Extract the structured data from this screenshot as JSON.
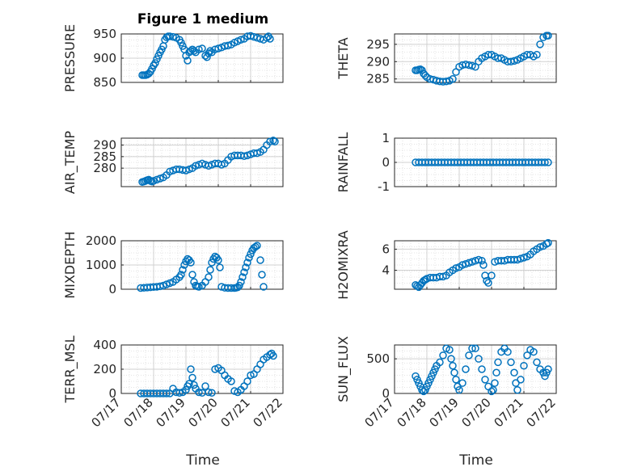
{
  "figure": {
    "title": "Figure 1 medium",
    "marker_color": "#0072BD",
    "x_tick_labels": [
      "07/17",
      "07/18",
      "07/19",
      "07/20",
      "07/21",
      "07/22"
    ]
  },
  "chart_data": [
    {
      "type": "scatter",
      "ylabel": "PRESSURE",
      "xlabel": "",
      "title": "Figure 1 medium",
      "xlim": [
        0,
        5
      ],
      "ylim": [
        850,
        950
      ],
      "yticks": [
        850,
        900,
        950
      ],
      "grid": true,
      "x": [
        0.65,
        0.7,
        0.75,
        0.8,
        0.85,
        0.9,
        0.95,
        1.0,
        1.05,
        1.1,
        1.15,
        1.2,
        1.25,
        1.3,
        1.35,
        1.4,
        1.45,
        1.5,
        1.6,
        1.7,
        1.8,
        1.85,
        1.9,
        1.95,
        2.0,
        2.05,
        2.1,
        2.15,
        2.2,
        2.25,
        2.3,
        2.4,
        2.5,
        2.6,
        2.65,
        2.7,
        2.75,
        2.8,
        2.9,
        3.0,
        3.1,
        3.2,
        3.3,
        3.4,
        3.5,
        3.6,
        3.7,
        3.8,
        3.9,
        4.0,
        4.1,
        4.2,
        4.3,
        4.4,
        4.5,
        4.55,
        4.6
      ],
      "y": [
        865,
        865,
        865,
        866,
        868,
        872,
        878,
        885,
        890,
        898,
        905,
        912,
        918,
        925,
        938,
        943,
        945,
        945,
        944,
        942,
        938,
        932,
        925,
        918,
        905,
        895,
        912,
        915,
        918,
        915,
        912,
        918,
        920,
        905,
        902,
        910,
        915,
        912,
        918,
        920,
        922,
        925,
        926,
        928,
        932,
        935,
        938,
        940,
        945,
        946,
        944,
        942,
        940,
        938,
        942,
        945,
        940
      ]
    },
    {
      "type": "scatter",
      "ylabel": "THETA",
      "xlabel": "",
      "xlim": [
        0,
        5
      ],
      "ylim": [
        284,
        298
      ],
      "yticks": [
        285,
        290,
        295
      ],
      "grid": true,
      "x": [
        0.65,
        0.7,
        0.75,
        0.8,
        0.85,
        0.9,
        0.95,
        1.0,
        1.1,
        1.2,
        1.3,
        1.4,
        1.5,
        1.6,
        1.7,
        1.8,
        1.9,
        2.0,
        2.1,
        2.2,
        2.3,
        2.4,
        2.5,
        2.6,
        2.7,
        2.8,
        2.9,
        3.0,
        3.1,
        3.2,
        3.3,
        3.4,
        3.5,
        3.6,
        3.7,
        3.8,
        3.9,
        4.0,
        4.1,
        4.2,
        4.3,
        4.4,
        4.5,
        4.6,
        4.7,
        4.75
      ],
      "y": [
        287.5,
        287.5,
        287.7,
        287.8,
        287.5,
        286.5,
        286,
        285.5,
        285,
        284.8,
        284.5,
        284.3,
        284.2,
        284.3,
        284.5,
        285,
        287,
        288.5,
        289,
        289.2,
        289,
        288.8,
        288.5,
        290,
        291,
        291.5,
        292,
        292,
        291.5,
        291,
        291,
        290.5,
        290,
        290,
        290.2,
        290.5,
        291,
        291.5,
        292,
        292,
        291.5,
        292,
        295,
        297,
        297.5,
        297.5
      ]
    },
    {
      "type": "scatter",
      "ylabel": "AIR_TEMP",
      "xlabel": "",
      "xlim": [
        0,
        5
      ],
      "ylim": [
        272,
        293
      ],
      "yticks": [
        280,
        285,
        290
      ],
      "grid": true,
      "x": [
        0.65,
        0.7,
        0.75,
        0.8,
        0.85,
        0.9,
        0.95,
        1.0,
        1.1,
        1.2,
        1.3,
        1.4,
        1.5,
        1.6,
        1.7,
        1.8,
        1.9,
        2.0,
        2.1,
        2.2,
        2.3,
        2.4,
        2.5,
        2.6,
        2.7,
        2.8,
        2.9,
        3.0,
        3.1,
        3.2,
        3.3,
        3.4,
        3.5,
        3.6,
        3.7,
        3.8,
        3.9,
        4.0,
        4.1,
        4.2,
        4.3,
        4.4,
        4.5,
        4.6,
        4.7,
        4.75
      ],
      "y": [
        274,
        274.2,
        274.5,
        274.8,
        275,
        274.5,
        274.2,
        274.5,
        275,
        275.5,
        276,
        277,
        278.5,
        279,
        279.5,
        279.5,
        279.2,
        279,
        279.5,
        280,
        281,
        281.5,
        282,
        281.5,
        281,
        281.5,
        282,
        282,
        281.5,
        282,
        283.5,
        285,
        285.5,
        285.5,
        285.5,
        285.2,
        285.5,
        286,
        286.5,
        286.5,
        287,
        288,
        290,
        291.5,
        292,
        291.5
      ]
    },
    {
      "type": "scatter",
      "ylabel": "RAINFALL",
      "xlabel": "",
      "xlim": [
        0,
        5
      ],
      "ylim": [
        -1,
        1
      ],
      "yticks": [
        -1,
        0,
        1
      ],
      "grid": true,
      "x": [
        0.65,
        0.75,
        0.85,
        0.95,
        1.05,
        1.15,
        1.25,
        1.35,
        1.45,
        1.55,
        1.65,
        1.75,
        1.85,
        1.95,
        2.05,
        2.15,
        2.25,
        2.35,
        2.45,
        2.55,
        2.65,
        2.75,
        2.85,
        2.95,
        3.05,
        3.15,
        3.25,
        3.35,
        3.45,
        3.55,
        3.65,
        3.75,
        3.85,
        3.95,
        4.05,
        4.15,
        4.25,
        4.35,
        4.45,
        4.55,
        4.65,
        4.75
      ],
      "y": [
        0,
        0,
        0,
        0,
        0,
        0,
        0,
        0,
        0,
        0,
        0,
        0,
        0,
        0,
        0,
        0,
        0,
        0,
        0,
        0,
        0,
        0,
        0,
        0,
        0,
        0,
        0,
        0,
        0,
        0,
        0,
        0,
        0,
        0,
        0,
        0,
        0,
        0,
        0,
        0,
        0,
        0
      ]
    },
    {
      "type": "scatter",
      "ylabel": "MIXDEPTH",
      "xlabel": "",
      "xlim": [
        0,
        5
      ],
      "ylim": [
        0,
        2000
      ],
      "yticks": [
        0,
        1000,
        2000
      ],
      "grid": true,
      "x": [
        0.6,
        0.7,
        0.8,
        0.9,
        1.0,
        1.1,
        1.2,
        1.3,
        1.4,
        1.5,
        1.6,
        1.7,
        1.8,
        1.85,
        1.9,
        1.95,
        2.0,
        2.05,
        2.1,
        2.15,
        2.2,
        2.25,
        2.3,
        2.35,
        2.4,
        2.5,
        2.6,
        2.7,
        2.75,
        2.8,
        2.85,
        2.9,
        2.95,
        3.0,
        3.05,
        3.1,
        3.2,
        3.3,
        3.4,
        3.5,
        3.55,
        3.6,
        3.65,
        3.7,
        3.75,
        3.8,
        3.85,
        3.9,
        3.95,
        4.0,
        4.05,
        4.1,
        4.15,
        4.2,
        4.3,
        4.35,
        4.4
      ],
      "y": [
        50,
        60,
        70,
        80,
        90,
        100,
        120,
        150,
        200,
        250,
        300,
        400,
        500,
        600,
        800,
        1000,
        1150,
        1250,
        1200,
        1100,
        600,
        300,
        150,
        120,
        100,
        150,
        300,
        500,
        800,
        1100,
        1250,
        1350,
        1300,
        1200,
        900,
        100,
        60,
        50,
        50,
        50,
        60,
        80,
        150,
        300,
        500,
        700,
        900,
        1100,
        1300,
        1450,
        1600,
        1700,
        1750,
        1800,
        1200,
        600,
        100
      ]
    },
    {
      "type": "scatter",
      "ylabel": "H2OMIXRA",
      "xlabel": "",
      "xlim": [
        0,
        5
      ],
      "ylim": [
        2.2,
        6.8
      ],
      "yticks": [
        4,
        6
      ],
      "grid": true,
      "x": [
        0.65,
        0.7,
        0.75,
        0.8,
        0.85,
        0.9,
        0.95,
        1.0,
        1.1,
        1.2,
        1.3,
        1.4,
        1.5,
        1.6,
        1.7,
        1.8,
        1.9,
        2.0,
        2.1,
        2.2,
        2.3,
        2.4,
        2.5,
        2.6,
        2.7,
        2.75,
        2.8,
        2.85,
        2.9,
        3.0,
        3.1,
        3.2,
        3.3,
        3.4,
        3.5,
        3.6,
        3.7,
        3.8,
        3.9,
        4.0,
        4.1,
        4.2,
        4.3,
        4.4,
        4.5,
        4.6,
        4.7,
        4.75
      ],
      "y": [
        2.6,
        2.5,
        2.4,
        2.6,
        2.8,
        3.0,
        3.1,
        3.2,
        3.3,
        3.3,
        3.3,
        3.4,
        3.4,
        3.5,
        3.8,
        4.0,
        4.2,
        4.3,
        4.5,
        4.6,
        4.7,
        4.8,
        4.9,
        5.0,
        4.9,
        4.5,
        3.5,
        3.0,
        2.8,
        3.5,
        4.8,
        4.9,
        4.9,
        4.9,
        5.0,
        5.0,
        5.0,
        5.0,
        5.1,
        5.2,
        5.3,
        5.5,
        5.8,
        6.0,
        6.2,
        6.3,
        6.5,
        6.6
      ]
    },
    {
      "type": "scatter",
      "ylabel": "TERR_MSL",
      "xlabel": "Time",
      "xlim": [
        0,
        5
      ],
      "ylim": [
        0,
        400
      ],
      "yticks": [
        0,
        200,
        400
      ],
      "grid": true,
      "x": [
        0.6,
        0.7,
        0.8,
        0.9,
        1.0,
        1.1,
        1.2,
        1.3,
        1.4,
        1.5,
        1.6,
        1.7,
        1.8,
        1.9,
        2.0,
        2.05,
        2.1,
        2.15,
        2.2,
        2.25,
        2.3,
        2.4,
        2.5,
        2.6,
        2.7,
        2.8,
        2.9,
        3.0,
        3.1,
        3.2,
        3.3,
        3.4,
        3.5,
        3.6,
        3.7,
        3.8,
        3.9,
        4.0,
        4.1,
        4.2,
        4.3,
        4.4,
        4.5,
        4.6,
        4.65,
        4.7
      ],
      "y": [
        0,
        0,
        0,
        0,
        0,
        0,
        0,
        0,
        0,
        0,
        40,
        10,
        5,
        10,
        30,
        60,
        80,
        200,
        130,
        70,
        40,
        10,
        5,
        60,
        10,
        5,
        200,
        210,
        190,
        150,
        120,
        100,
        20,
        10,
        30,
        60,
        100,
        150,
        160,
        200,
        240,
        280,
        300,
        320,
        330,
        310
      ]
    },
    {
      "type": "scatter",
      "ylabel": "SUN_FLUX",
      "xlabel": "Time",
      "xlim": [
        0,
        5
      ],
      "ylim": [
        0,
        700
      ],
      "yticks": [
        0,
        500
      ],
      "grid": true,
      "x": [
        0.65,
        0.7,
        0.75,
        0.8,
        0.85,
        0.9,
        0.95,
        1.0,
        1.05,
        1.1,
        1.15,
        1.2,
        1.25,
        1.3,
        1.4,
        1.5,
        1.6,
        1.7,
        1.75,
        1.8,
        1.85,
        1.9,
        1.95,
        2.0,
        2.1,
        2.2,
        2.3,
        2.4,
        2.5,
        2.6,
        2.7,
        2.8,
        2.9,
        3.0,
        3.05,
        3.1,
        3.15,
        3.2,
        3.3,
        3.4,
        3.5,
        3.6,
        3.7,
        3.75,
        3.8,
        3.9,
        4.0,
        4.1,
        4.2,
        4.3,
        4.4,
        4.5,
        4.6,
        4.65,
        4.7,
        4.75
      ],
      "y": [
        250,
        200,
        150,
        100,
        50,
        30,
        50,
        100,
        150,
        200,
        250,
        300,
        350,
        400,
        450,
        550,
        650,
        630,
        500,
        400,
        300,
        200,
        100,
        50,
        150,
        350,
        550,
        650,
        650,
        500,
        350,
        200,
        100,
        30,
        50,
        150,
        300,
        450,
        600,
        650,
        600,
        450,
        300,
        150,
        50,
        200,
        400,
        550,
        630,
        600,
        450,
        350,
        300,
        250,
        300,
        350
      ]
    }
  ]
}
